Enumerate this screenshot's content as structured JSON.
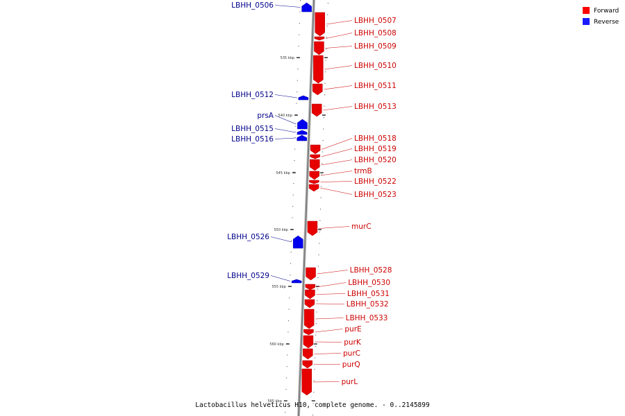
{
  "caption": "Lactobacillus helveticus H10, complete genome. - 0..2145899",
  "legend": [
    {
      "label": "Forward",
      "color": "#ff0000"
    },
    {
      "label": "Reverse",
      "color": "#1a1aff"
    }
  ],
  "colors": {
    "forward_fill": "#e60000",
    "forward_label": "#cc0000",
    "reverse_fill": "#0000ee",
    "reverse_label": "#00008b",
    "backbone": "#7f7f7f"
  },
  "scale_ticks": [
    {
      "label": "535 kbp"
    },
    {
      "label": "540 kbp"
    },
    {
      "label": "545 kbp"
    },
    {
      "label": "550 kbp"
    },
    {
      "label": "555 kbp"
    },
    {
      "label": "560 kbp"
    },
    {
      "label": "565 kbp"
    }
  ],
  "genes": [
    {
      "name": "LBHH_0506",
      "strand": "reverse"
    },
    {
      "name": "LBHH_0507",
      "strand": "forward"
    },
    {
      "name": "LBHH_0508",
      "strand": "forward"
    },
    {
      "name": "LBHH_0509",
      "strand": "forward"
    },
    {
      "name": "LBHH_0510",
      "strand": "forward"
    },
    {
      "name": "LBHH_0511",
      "strand": "forward"
    },
    {
      "name": "LBHH_0512",
      "strand": "reverse"
    },
    {
      "name": "LBHH_0513",
      "strand": "forward"
    },
    {
      "name": "prsA",
      "strand": "reverse"
    },
    {
      "name": "LBHH_0515",
      "strand": "reverse"
    },
    {
      "name": "LBHH_0516",
      "strand": "reverse"
    },
    {
      "name": "LBHH_0518",
      "strand": "forward"
    },
    {
      "name": "LBHH_0519",
      "strand": "forward"
    },
    {
      "name": "LBHH_0520",
      "strand": "forward"
    },
    {
      "name": "trmB",
      "strand": "forward"
    },
    {
      "name": "LBHH_0522",
      "strand": "forward"
    },
    {
      "name": "LBHH_0523",
      "strand": "forward"
    },
    {
      "name": "murC",
      "strand": "forward"
    },
    {
      "name": "LBHH_0526",
      "strand": "reverse"
    },
    {
      "name": "LBHH_0528",
      "strand": "forward"
    },
    {
      "name": "LBHH_0529",
      "strand": "reverse"
    },
    {
      "name": "LBHH_0530",
      "strand": "forward"
    },
    {
      "name": "LBHH_0531",
      "strand": "forward"
    },
    {
      "name": "LBHH_0532",
      "strand": "forward"
    },
    {
      "name": "LBHH_0533",
      "strand": "forward"
    },
    {
      "name": "purE",
      "strand": "forward"
    },
    {
      "name": "purK",
      "strand": "forward"
    },
    {
      "name": "purC",
      "strand": "forward"
    },
    {
      "name": "purQ",
      "strand": "forward"
    },
    {
      "name": "purL",
      "strand": "forward"
    }
  ]
}
